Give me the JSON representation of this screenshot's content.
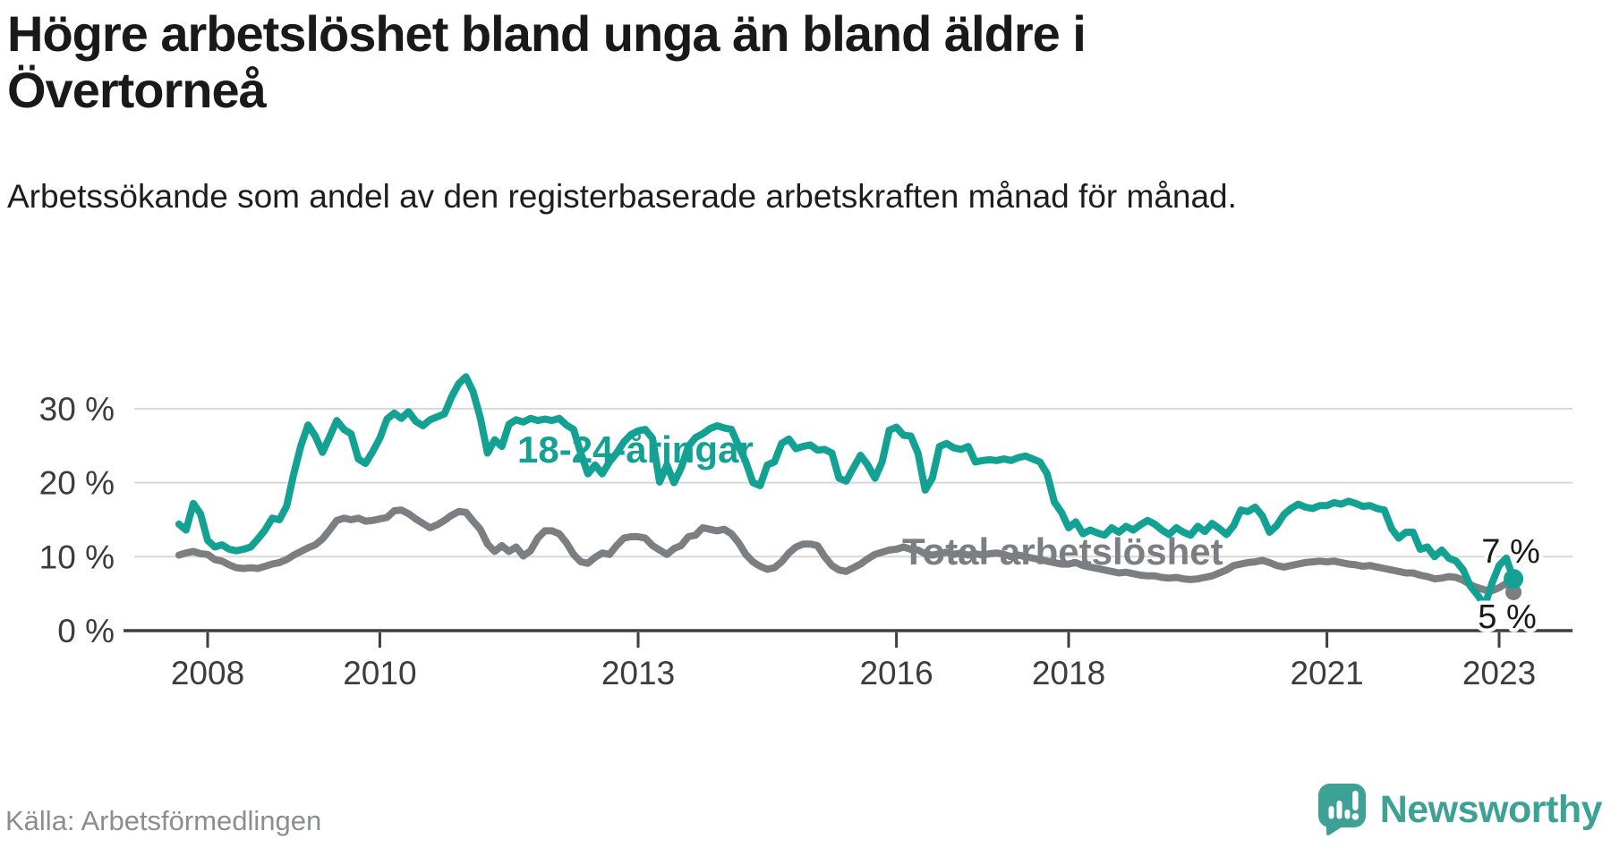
{
  "title": "Högre arbetslöshet bland unga än bland äldre i Övertorneå",
  "subtitle": "Arbetssökande som andel av den registerbaserade arbetskraften månad för månad.",
  "source": "Källa: Arbetsförmedlingen",
  "branding": {
    "name": "Newsworthy",
    "color": "#3ea195"
  },
  "colors": {
    "accent_teal": "#12a192",
    "line_gray": "#7c7f82",
    "gridline": "#d8d8d8",
    "axis": "#3f3f3f",
    "tick_text": "#3c3c3c",
    "end_label_text": "#1a1a1a"
  },
  "chart_data": {
    "type": "line",
    "title": "Högre arbetslöshet bland unga än bland äldre i Övertorneå",
    "xlabel": "",
    "ylabel": "Arbetssökande som andel av den registerbaserade arbetskraften",
    "ylim": [
      0,
      36
    ],
    "grid": "horizontal",
    "legend_position": "inline-labels",
    "x_unit": "month",
    "start_year": 2007,
    "start_month": 9,
    "end_year": 2023,
    "end_month": 3,
    "y_ticks": [
      {
        "value": 0,
        "label": "0 %"
      },
      {
        "value": 10,
        "label": "10 %"
      },
      {
        "value": 20,
        "label": "20 %"
      },
      {
        "value": 30,
        "label": "30 %"
      }
    ],
    "x_ticks": [
      {
        "year": 2008,
        "label": "2008"
      },
      {
        "year": 2010,
        "label": "2010"
      },
      {
        "year": 2013,
        "label": "2013"
      },
      {
        "year": 2016,
        "label": "2016"
      },
      {
        "year": 2018,
        "label": "2018"
      },
      {
        "year": 2021,
        "label": "2021"
      },
      {
        "year": 2023,
        "label": "2023"
      }
    ],
    "series": [
      {
        "name": "Total arbetslöshet",
        "color": "#7c7f82",
        "end_label": "5 %",
        "values": [
          10.2,
          10.5,
          10.7,
          10.4,
          10.3,
          9.6,
          9.4,
          8.9,
          8.5,
          8.4,
          8.5,
          8.4,
          8.7,
          9.0,
          9.2,
          9.6,
          10.2,
          10.7,
          11.2,
          11.6,
          12.4,
          13.6,
          14.9,
          15.2,
          15.0,
          15.2,
          14.8,
          14.9,
          15.1,
          15.3,
          16.2,
          16.3,
          15.8,
          15.1,
          14.5,
          13.9,
          14.3,
          14.9,
          15.6,
          16.1,
          16.0,
          14.8,
          13.7,
          11.7,
          10.7,
          11.5,
          10.7,
          11.3,
          10.1,
          10.8,
          12.5,
          13.5,
          13.5,
          13.1,
          11.9,
          10.3,
          9.3,
          9.1,
          9.9,
          10.5,
          10.3,
          11.5,
          12.5,
          12.7,
          12.7,
          12.5,
          11.5,
          10.9,
          10.3,
          11.1,
          11.5,
          12.7,
          12.9,
          13.9,
          13.7,
          13.5,
          13.7,
          13.1,
          11.9,
          10.3,
          9.3,
          8.7,
          8.3,
          8.5,
          9.3,
          10.5,
          11.3,
          11.7,
          11.7,
          11.5,
          10.0,
          8.8,
          8.2,
          8.0,
          8.5,
          9.0,
          9.7,
          10.3,
          10.6,
          10.9,
          11.0,
          11.3,
          11.0,
          10.9,
          10.4,
          10.2,
          10.4,
          10.6,
          10.3,
          10.5,
          10.2,
          10.4,
          10.2,
          10.4,
          10.5,
          10.3,
          10.0,
          10.2,
          10.0,
          9.8,
          9.6,
          9.4,
          9.2,
          9.0,
          9.0,
          9.2,
          8.8,
          8.6,
          8.4,
          8.2,
          8.0,
          7.8,
          7.9,
          7.7,
          7.5,
          7.4,
          7.4,
          7.2,
          7.1,
          7.2,
          7.0,
          6.9,
          7.0,
          7.2,
          7.4,
          7.8,
          8.2,
          8.8,
          9.0,
          9.2,
          9.3,
          9.5,
          9.2,
          8.8,
          8.6,
          8.8,
          9.0,
          9.2,
          9.3,
          9.4,
          9.3,
          9.4,
          9.2,
          9.0,
          8.9,
          8.7,
          8.8,
          8.6,
          8.4,
          8.2,
          8.0,
          7.8,
          7.8,
          7.5,
          7.3,
          7.0,
          7.1,
          7.3,
          7.2,
          6.8,
          6.2,
          5.8,
          5.5,
          5.4,
          5.8,
          6.4,
          5.2
        ]
      },
      {
        "name": "18-24-åringar",
        "color": "#12a192",
        "end_label": "7 %",
        "values": [
          14.4,
          13.6,
          17.2,
          15.8,
          12.2,
          11.3,
          11.6,
          11.0,
          10.8,
          11.0,
          11.3,
          12.4,
          13.6,
          15.2,
          15.0,
          16.8,
          21.2,
          25.0,
          27.8,
          26.3,
          24.1,
          26.2,
          28.4,
          27.2,
          26.6,
          23.2,
          22.6,
          24.2,
          26.0,
          28.6,
          29.4,
          28.7,
          29.6,
          28.3,
          27.7,
          28.5,
          28.9,
          29.3,
          31.6,
          33.4,
          34.3,
          32.3,
          28.8,
          24.0,
          25.8,
          24.9,
          27.9,
          28.5,
          28.2,
          28.7,
          28.4,
          28.6,
          28.4,
          28.7,
          27.8,
          27.2,
          24.0,
          21.2,
          22.4,
          21.2,
          22.8,
          24.0,
          25.5,
          26.5,
          27.0,
          27.2,
          26.0,
          20.1,
          22.4,
          20.0,
          22.0,
          24.9,
          26.1,
          26.6,
          27.3,
          27.7,
          27.4,
          27.2,
          25.0,
          22.8,
          20.0,
          19.6,
          22.4,
          22.8,
          25.3,
          25.9,
          24.6,
          24.9,
          25.1,
          24.4,
          24.5,
          24.0,
          20.6,
          20.2,
          22.0,
          23.7,
          22.4,
          20.6,
          22.8,
          27.1,
          27.5,
          26.4,
          26.3,
          24.0,
          19.0,
          20.6,
          24.9,
          25.3,
          24.7,
          24.5,
          24.9,
          22.8,
          23.0,
          23.1,
          23.0,
          23.2,
          23.0,
          23.4,
          23.6,
          23.2,
          22.8,
          21.2,
          17.4,
          16.0,
          13.9,
          14.7,
          13.1,
          13.6,
          13.2,
          12.9,
          13.9,
          13.3,
          14.1,
          13.6,
          14.3,
          14.9,
          14.4,
          13.6,
          13.0,
          13.9,
          13.3,
          12.9,
          14.1,
          13.4,
          14.5,
          13.8,
          13.0,
          14.2,
          16.3,
          16.1,
          16.7,
          15.5,
          13.3,
          14.2,
          15.7,
          16.5,
          17.1,
          16.7,
          16.5,
          16.9,
          16.9,
          17.3,
          17.1,
          17.5,
          17.2,
          16.8,
          16.9,
          16.5,
          16.3,
          13.8,
          12.5,
          13.3,
          13.3,
          11.0,
          11.3,
          10.0,
          10.9,
          9.8,
          9.4,
          8.2,
          6.0,
          4.8,
          3.4,
          6.4,
          8.8,
          9.8,
          7.0
        ]
      }
    ]
  }
}
